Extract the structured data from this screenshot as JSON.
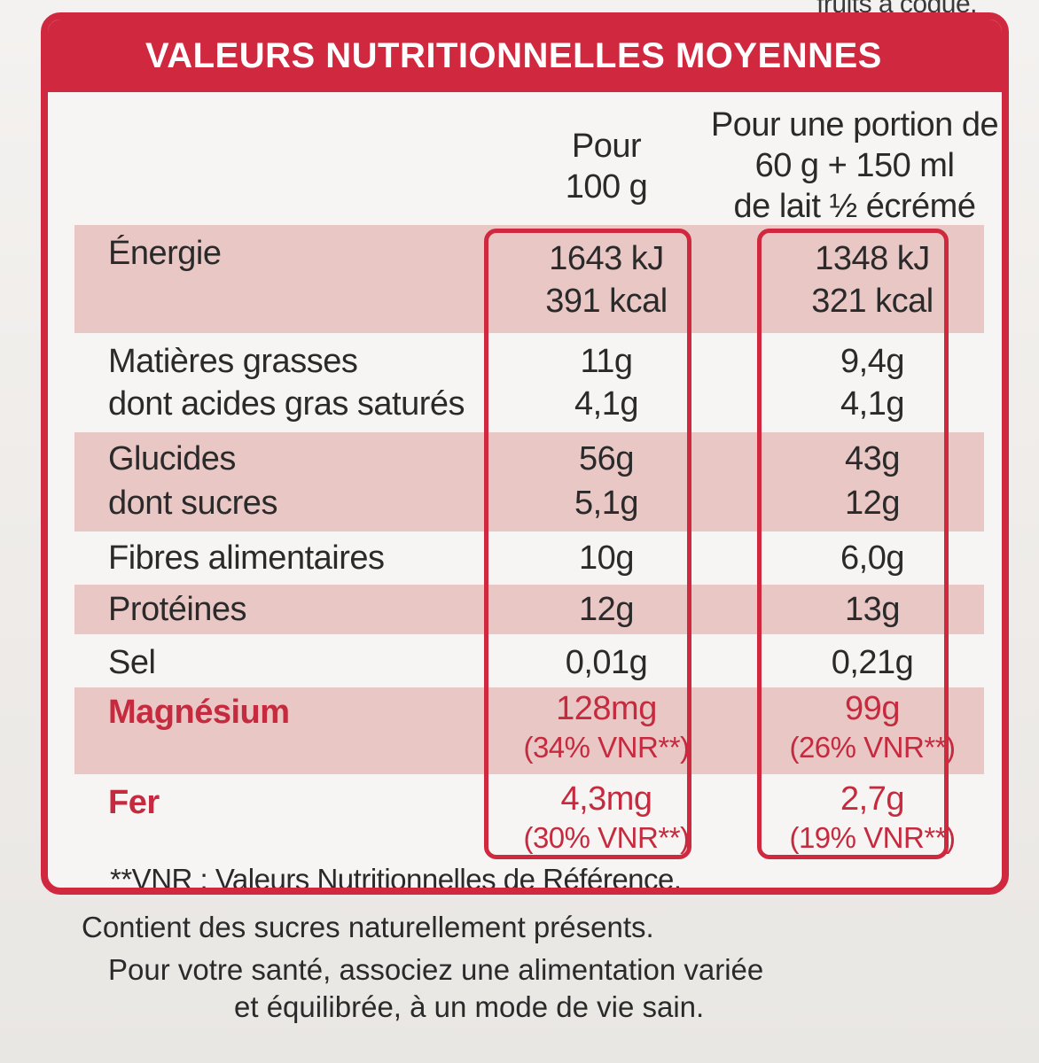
{
  "top_fragment": "fruits à coque.",
  "header": {
    "title": "VALEURS NUTRITIONNELLES MOYENNES"
  },
  "columns": {
    "per100": [
      "Pour",
      "100 g"
    ],
    "portion": [
      "Pour une portion de",
      "60 g + 150 ml",
      "de lait ½ écrémé"
    ]
  },
  "rows": [
    {
      "label": "Énergie",
      "per100": [
        "1643 kJ",
        "391 kcal"
      ],
      "portion": [
        "1348 kJ",
        "321 kcal"
      ]
    },
    {
      "label": "Matières grasses",
      "per100": [
        "11g"
      ],
      "portion": [
        "9,4g"
      ]
    },
    {
      "label": "dont acides gras saturés",
      "per100": [
        "4,1g"
      ],
      "portion": [
        "4,1g"
      ]
    },
    {
      "label": "Glucides",
      "per100": [
        "56g"
      ],
      "portion": [
        "43g"
      ]
    },
    {
      "label": "dont sucres",
      "per100": [
        "5,1g"
      ],
      "portion": [
        "12g"
      ]
    },
    {
      "label": "Fibres alimentaires",
      "per100": [
        "10g"
      ],
      "portion": [
        "6,0g"
      ]
    },
    {
      "label": "Protéines",
      "per100": [
        "12g"
      ],
      "portion": [
        "13g"
      ]
    },
    {
      "label": "Sel",
      "per100": [
        "0,01g"
      ],
      "portion": [
        "0,21g"
      ]
    },
    {
      "label": "Magnésium",
      "per100": [
        "128mg",
        "(34% VNR**)"
      ],
      "portion": [
        "99g",
        "(26% VNR**)"
      ]
    },
    {
      "label": "Fer",
      "per100": [
        "4,3mg",
        "(30% VNR**)"
      ],
      "portion": [
        "2,7g",
        "(19% VNR**)"
      ]
    }
  ],
  "footnote": "**VNR : Valeurs Nutritionnelles de Référence.",
  "notes": [
    "Contient des sucres naturellement présents.",
    "Pour votre santé, associez une alimentation variée",
    "et équilibrée, à un mode de vie sain."
  ],
  "colors": {
    "accent": "#d0283f",
    "shade": "#e9c7c5",
    "text": "#2a2a2a"
  }
}
